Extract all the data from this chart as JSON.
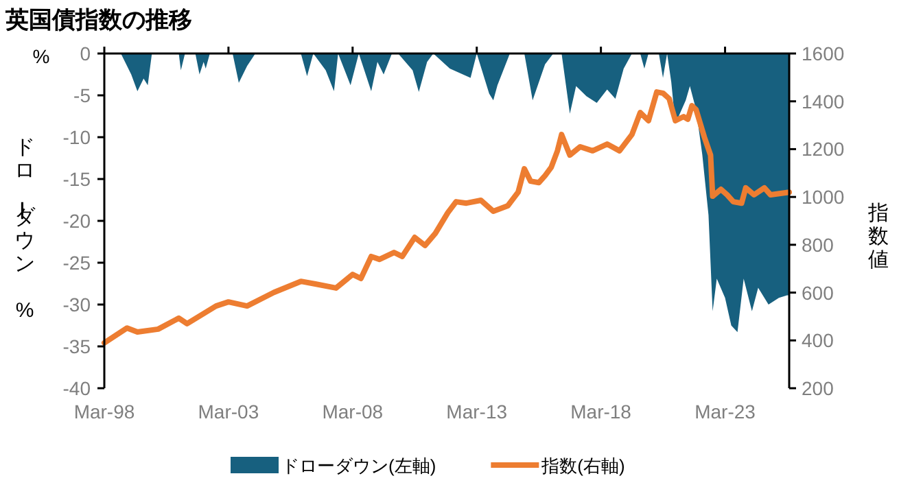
{
  "chart_data": {
    "type": "line",
    "title": "英国債指数の推移",
    "ylabel": "ドローダウン %",
    "y2label": "指数値",
    "annotations": [
      "%"
    ],
    "xlim": [
      "1998-03",
      "2025-10"
    ],
    "xticks": [
      {
        "value": "1998-03",
        "label": "Mar-98"
      },
      {
        "value": "2003-03",
        "label": "Mar-03"
      },
      {
        "value": "2008-03",
        "label": "Mar-08"
      },
      {
        "value": "2013-03",
        "label": "Mar-13"
      },
      {
        "value": "2018-03",
        "label": "Mar-18"
      },
      {
        "value": "2023-03",
        "label": "Mar-23"
      }
    ],
    "ylim": [
      -40,
      0
    ],
    "yticks": [
      -40,
      -35,
      -30,
      -25,
      -20,
      -15,
      -10,
      -5,
      0
    ],
    "y2lim": [
      200,
      1600
    ],
    "y2ticks": [
      200,
      400,
      600,
      800,
      1000,
      1200,
      1400,
      1600
    ],
    "grid": false,
    "legend": "bottom",
    "series": [
      {
        "name": "ドローダウン(左軸)",
        "type": "area",
        "axis": "y",
        "color": "#17607f",
        "x": [
          "1998-03",
          "1998-11",
          "1999-04",
          "1999-07",
          "1999-10",
          "1999-12",
          "2000-02",
          "2001-03",
          "2001-04",
          "2001-06",
          "2001-11",
          "2002-01",
          "2002-03",
          "2002-04",
          "2002-06",
          "2003-05",
          "2003-08",
          "2003-12",
          "2004-04",
          "2006-02",
          "2006-05",
          "2006-08",
          "2007-02",
          "2007-06",
          "2007-08",
          "2008-02",
          "2008-06",
          "2008-12",
          "2009-03",
          "2009-06",
          "2009-10",
          "2010-01",
          "2010-08",
          "2010-11",
          "2011-03",
          "2011-06",
          "2012-02",
          "2012-12",
          "2013-03",
          "2013-09",
          "2013-11",
          "2014-01",
          "2014-07",
          "2015-02",
          "2015-06",
          "2015-12",
          "2016-04",
          "2016-08",
          "2016-12",
          "2017-03",
          "2017-08",
          "2018-01",
          "2018-06",
          "2018-10",
          "2019-02",
          "2019-06",
          "2019-10",
          "2019-12",
          "2020-02",
          "2020-07",
          "2020-09",
          "2020-11",
          "2021-01",
          "2021-03",
          "2021-08",
          "2021-10",
          "2022-01",
          "2022-04",
          "2022-07",
          "2022-09",
          "2022-11",
          "2023-03",
          "2023-06",
          "2023-09",
          "2023-12",
          "2024-04",
          "2024-07",
          "2024-12",
          "2025-05",
          "2025-09",
          "2025-10"
        ],
        "values": [
          0,
          0,
          -2.5,
          -4.5,
          -3,
          -3.8,
          0,
          0,
          -2,
          0,
          0,
          -2.5,
          -1,
          -1.8,
          0,
          0,
          -3.5,
          -1.5,
          0,
          0,
          -2.7,
          0,
          -2,
          -4.5,
          0,
          -3.8,
          0,
          -4.5,
          -1,
          -2.5,
          0,
          0,
          -2,
          -4.6,
          -1,
          0,
          -1.8,
          -2.9,
          0,
          -4.8,
          -5.6,
          -3.8,
          0,
          0,
          -5.6,
          -1.3,
          0,
          0,
          -7.2,
          -3.9,
          -5.1,
          -5.9,
          -4.3,
          -5.4,
          -1.8,
          0,
          0,
          -1.8,
          0,
          0,
          -2.9,
          0,
          -3.4,
          -8.4,
          -5.6,
          -3.9,
          -6.7,
          -12.1,
          -19.3,
          -30.8,
          -26.9,
          -29.2,
          -32.5,
          -33.3,
          -26.9,
          -30.8,
          -28,
          -30,
          -29.2,
          -28.9,
          -28.9
        ]
      },
      {
        "name": "指数(右軸)",
        "axis": "y2",
        "color": "#ed7d31",
        "x": [
          "1998-03",
          "1999-02",
          "1999-07",
          "2000-05",
          "2001-03",
          "2001-07",
          "2002-09",
          "2003-03",
          "2003-12",
          "2005-01",
          "2006-02",
          "2006-09",
          "2007-07",
          "2008-03",
          "2008-07",
          "2008-12",
          "2009-04",
          "2009-11",
          "2010-03",
          "2010-09",
          "2011-02",
          "2011-07",
          "2012-01",
          "2012-05",
          "2012-10",
          "2013-05",
          "2013-11",
          "2014-06",
          "2014-11",
          "2015-02",
          "2015-05",
          "2015-09",
          "2015-12",
          "2016-03",
          "2016-06",
          "2016-08",
          "2016-12",
          "2017-05",
          "2017-11",
          "2018-06",
          "2018-12",
          "2019-06",
          "2019-10",
          "2020-02",
          "2020-06",
          "2020-09",
          "2020-12",
          "2021-03",
          "2021-07",
          "2021-09",
          "2021-11",
          "2022-01",
          "2022-05",
          "2022-08",
          "2022-09",
          "2023-01",
          "2023-04",
          "2023-07",
          "2023-11",
          "2024-01",
          "2024-05",
          "2024-10",
          "2025-01",
          "2025-10"
        ],
        "values": [
          390,
          452,
          435,
          447,
          493,
          470,
          544,
          561,
          544,
          601,
          647,
          636,
          619,
          676,
          659,
          751,
          739,
          768,
          751,
          831,
          797,
          848,
          934,
          980,
          974,
          986,
          940,
          963,
          1020,
          1118,
          1066,
          1060,
          1089,
          1124,
          1193,
          1261,
          1175,
          1210,
          1193,
          1221,
          1193,
          1261,
          1353,
          1319,
          1439,
          1434,
          1411,
          1319,
          1336,
          1325,
          1382,
          1365,
          1250,
          1175,
          1003,
          1032,
          1009,
          980,
          974,
          1038,
          1009,
          1038,
          1009,
          1020
        ]
      }
    ]
  }
}
